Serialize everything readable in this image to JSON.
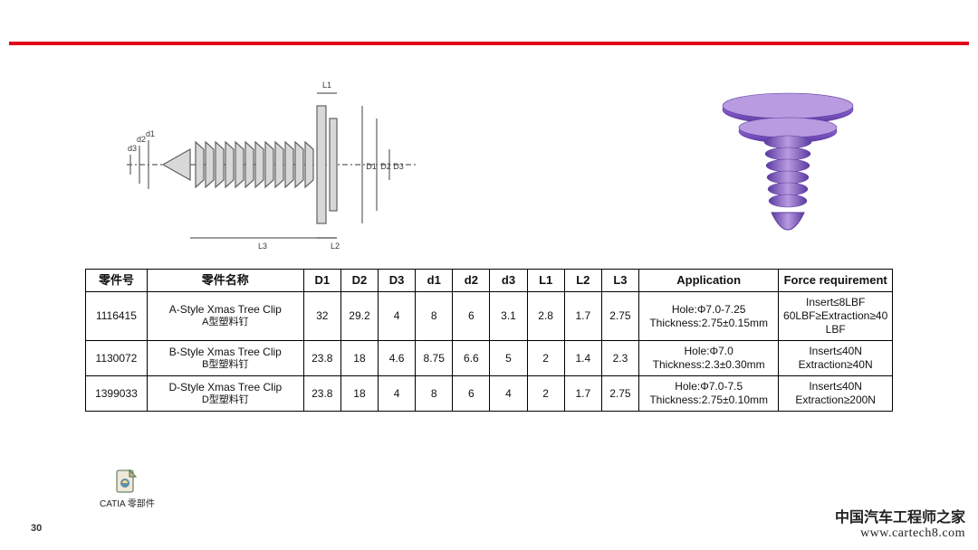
{
  "page_number": "30",
  "divider_color": "#e2001a",
  "catia": {
    "label": "CATIA 零部件"
  },
  "watermark": {
    "cn": "中国汽车工程师之家",
    "url": "www.cartech8.com"
  },
  "drawing": {
    "stroke": "#606060",
    "fill": "#d8d8d8",
    "label_color": "#3b3b3b",
    "labels": {
      "L1": "L1",
      "L2": "L2",
      "L3": "L3",
      "D1": "D1",
      "D2": "D2",
      "D3": "D3",
      "d1": "d1",
      "d2": "d2",
      "d3": "d3"
    }
  },
  "clip3d": {
    "light": "#b89be0",
    "mid": "#8a5dcf",
    "dark": "#5b3aa0"
  },
  "table": {
    "headers": {
      "part_no": "零件号",
      "part_name": "零件名称",
      "D1": "D1",
      "D2": "D2",
      "D3": "D3",
      "d1": "d1",
      "d2": "d2",
      "d3": "d3",
      "L1": "L1",
      "L2": "L2",
      "L3": "L3",
      "application": "Application",
      "force": "Force requirement"
    },
    "rows": [
      {
        "part_no": "1116415",
        "name_en": "A-Style Xmas Tree Clip",
        "name_cn": "A型塑料钉",
        "D1": "32",
        "D2": "29.2",
        "D3": "4",
        "d1": "8",
        "d2": "6",
        "d3": "3.1",
        "L1": "2.8",
        "L2": "1.7",
        "L3": "2.75",
        "application": "Hole:Φ7.0-7.25 Thickness:2.75±0.15mm",
        "force": "Insert≤8LBF 60LBF≥Extraction≥40LBF"
      },
      {
        "part_no": "1130072",
        "name_en": "B-Style Xmas Tree Clip",
        "name_cn": "B型塑料钉",
        "D1": "23.8",
        "D2": "18",
        "D3": "4.6",
        "d1": "8.75",
        "d2": "6.6",
        "d3": "5",
        "L1": "2",
        "L2": "1.4",
        "L3": "2.3",
        "application": "Hole:Φ7.0 Thickness:2.3±0.30mm",
        "force": "Insert≤40N Extraction≥40N"
      },
      {
        "part_no": "1399033",
        "name_en": "D-Style Xmas Tree Clip",
        "name_cn": "D型塑料钉",
        "D1": "23.8",
        "D2": "18",
        "D3": "4",
        "d1": "8",
        "d2": "6",
        "d3": "4",
        "L1": "2",
        "L2": "1.7",
        "L3": "2.75",
        "application": "Hole:Φ7.0-7.5 Thickness:2.75±0.10mm",
        "force": "Insert≤40N Extraction≥200N"
      }
    ]
  }
}
